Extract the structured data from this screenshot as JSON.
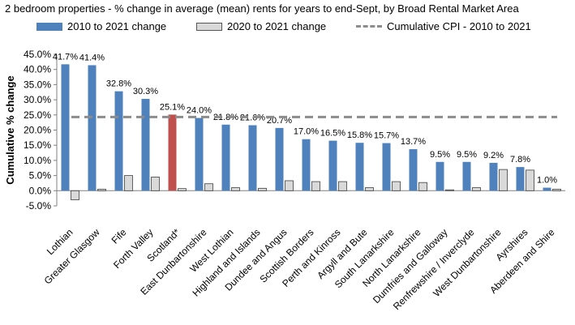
{
  "chart_data": {
    "type": "bar",
    "title": "2 bedroom properties - % change in average (mean) rents for years to end-Sept, by Broad Rental Market Area",
    "xlabel": "",
    "ylabel": "Cumulative % change",
    "ylim": [
      -5,
      45
    ],
    "yticks": [
      "-5.0%",
      "0.0%",
      "5.0%",
      "10.0%",
      "15.0%",
      "20.0%",
      "25.0%",
      "30.0%",
      "35.0%",
      "40.0%",
      "45.0%"
    ],
    "legend_position": "top",
    "categories": [
      "Lothian",
      "Greater Glasgow",
      "Fife",
      "Forth Valley",
      "Scotland*",
      "East Dunbartonshire",
      "West Lothian",
      "Highland and Islands",
      "Dundee and Angus",
      "Scottish Borders",
      "Perth and Kinross",
      "Argyll and Bute",
      "South Lanarkshire",
      "North Lanarkshire",
      "Dumfries and Galloway",
      "Renfrewshire / Inverclyde",
      "West Dunbartonshire",
      "Ayrshires",
      "Aberdeen and Shire"
    ],
    "series": [
      {
        "name": "2010 to 2021 change",
        "color": "#4f81bd",
        "highlight_category": "Scotland*",
        "highlight_color": "#c0504d",
        "values": [
          41.7,
          41.4,
          32.8,
          30.3,
          25.1,
          24.0,
          21.8,
          21.6,
          20.7,
          17.0,
          16.5,
          15.8,
          15.7,
          13.7,
          9.5,
          9.5,
          9.2,
          7.8,
          1.0
        ],
        "labels": [
          "41.7%",
          "41.4%",
          "32.8%",
          "30.3%",
          "25.1%",
          "24.0%",
          "21.8%",
          "21.6%",
          "20.7%",
          "17.0%",
          "16.5%",
          "15.8%",
          "15.7%",
          "13.7%",
          "9.5%",
          "9.5%",
          "9.2%",
          "7.8%",
          "1.0%"
        ]
      },
      {
        "name": "2020 to 2021 change",
        "color": "#d9d9d9",
        "values": [
          -3.0,
          0.5,
          5.0,
          4.5,
          0.7,
          2.3,
          1.0,
          0.8,
          3.3,
          3.0,
          3.0,
          1.0,
          3.0,
          2.7,
          0.3,
          1.0,
          7.0,
          6.8,
          0.5
        ]
      }
    ],
    "reference_lines": [
      {
        "name": "Cumulative CPI - 2010 to 2021",
        "value": 24.3,
        "color": "#8c8c8c",
        "style": "dashed"
      }
    ]
  }
}
